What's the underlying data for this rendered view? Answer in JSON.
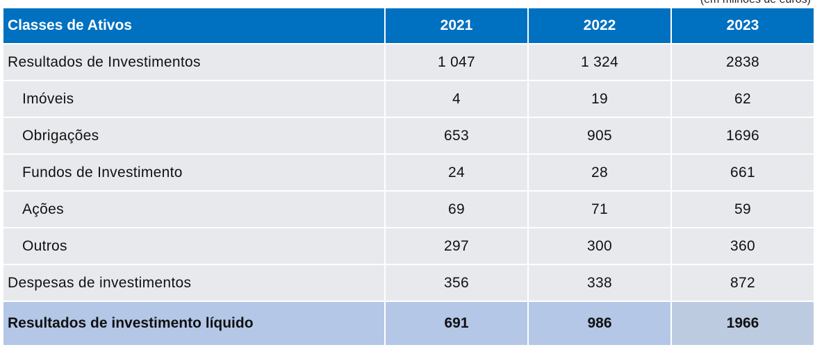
{
  "unit_note": "(em milhões de euros)",
  "table": {
    "header": {
      "label": "Classes de Ativos",
      "years": [
        "2021",
        "2022",
        "2023"
      ]
    },
    "rows": [
      {
        "label": "Resultados de Investimentos",
        "values": [
          "1 047",
          "1 324",
          "2838"
        ]
      },
      {
        "label": "Imóveis",
        "values": [
          "4",
          "19",
          "62"
        ]
      },
      {
        "label": "Obrigações",
        "values": [
          "653",
          "905",
          "1696"
        ]
      },
      {
        "label": "Fundos de Investimento",
        "values": [
          "24",
          "28",
          "661"
        ]
      },
      {
        "label": "Ações",
        "values": [
          "69",
          "71",
          "59"
        ]
      },
      {
        "label": "Outros",
        "values": [
          "297",
          "300",
          "360"
        ]
      },
      {
        "label": "Despesas de investimentos",
        "values": [
          "356",
          "338",
          "872"
        ]
      }
    ],
    "total": {
      "label": "Resultados de investimento líquido",
      "values": [
        "691",
        "986",
        "1966"
      ]
    }
  },
  "colors": {
    "header_bg": "#0070c0",
    "row_bg": "#e8e9ed",
    "total_bg": "#b4c7e7"
  }
}
